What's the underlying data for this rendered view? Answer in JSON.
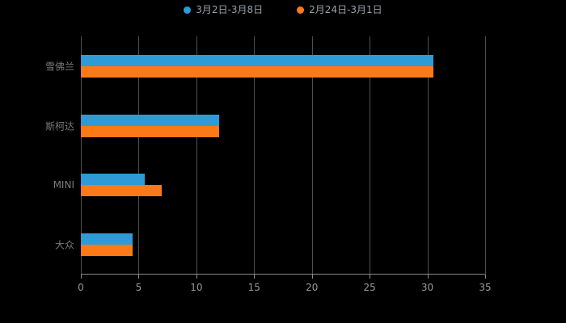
{
  "chart_data": {
    "type": "bar",
    "orientation": "horizontal",
    "title": "",
    "xlabel": "",
    "ylabel": "",
    "categories": [
      "雪佛兰",
      "斯柯达",
      "MINI",
      "大众"
    ],
    "series": [
      {
        "name": "3月2日-3月8日",
        "color": "#2e9bd6",
        "values": [
          30.5,
          12,
          5.5,
          4.5
        ]
      },
      {
        "name": "2月24日-3月1日",
        "color": "#fb7a17",
        "values": [
          30.5,
          12,
          7,
          4.5
        ]
      }
    ],
    "xlim": [
      0,
      35
    ],
    "xticks": [
      0,
      5,
      10,
      15,
      20,
      25,
      30,
      35
    ],
    "grid": true,
    "legend_position": "top"
  },
  "colors": {
    "background": "#000000",
    "grid_line": "#4f4f4f",
    "axis_line": "#8c8c8c",
    "tick_label_color": "#999999",
    "category_label_color": "#7a7a7a",
    "legend_label_color": "#9aa0a6"
  }
}
